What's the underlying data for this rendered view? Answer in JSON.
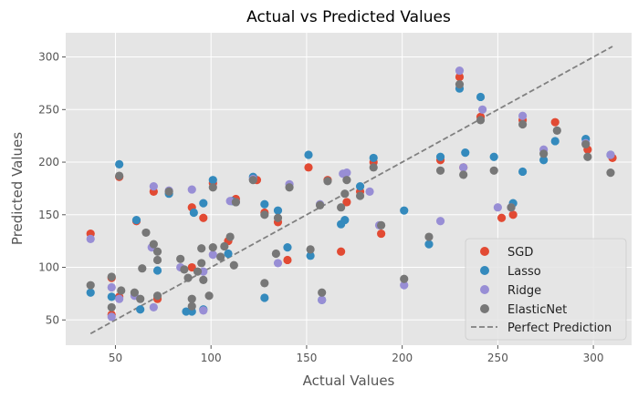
{
  "chart_data": {
    "type": "scatter",
    "title": "Actual vs Predicted Values",
    "xlabel": "Actual Values",
    "ylabel": "Predicted Values",
    "xlim": [
      24,
      320
    ],
    "ylim": [
      26,
      323
    ],
    "xticks": [
      50,
      100,
      150,
      200,
      250,
      300
    ],
    "yticks": [
      50,
      100,
      150,
      200,
      250,
      300
    ],
    "grid": true,
    "legend_position": "bottom-right",
    "colors": {
      "SGD": "#E24A33",
      "Lasso": "#348ABD",
      "Ridge": "#988ED5",
      "ElasticNet": "#777777",
      "Perfect Prediction": "#808080"
    },
    "series": [
      {
        "name": "SGD",
        "points": [
          [
            37,
            132
          ],
          [
            48,
            90
          ],
          [
            52,
            186
          ],
          [
            52,
            72
          ],
          [
            61,
            144
          ],
          [
            72,
            70
          ],
          [
            90,
            157
          ],
          [
            96,
            147
          ],
          [
            101,
            180
          ],
          [
            109,
            125
          ],
          [
            113,
            165
          ],
          [
            128,
            152
          ],
          [
            135,
            143
          ],
          [
            140,
            107
          ],
          [
            151,
            195
          ],
          [
            161,
            183
          ],
          [
            168,
            115
          ],
          [
            171,
            162
          ],
          [
            178,
            172
          ],
          [
            185,
            200
          ],
          [
            189,
            132
          ],
          [
            220,
            202
          ],
          [
            230,
            281
          ],
          [
            232,
            195
          ],
          [
            241,
            243
          ],
          [
            252,
            147
          ],
          [
            258,
            150
          ],
          [
            263,
            240
          ],
          [
            280,
            238
          ],
          [
            297,
            212
          ],
          [
            310,
            204
          ],
          [
            90,
            100
          ],
          [
            48,
            55
          ],
          [
            70,
            172
          ],
          [
            124,
            183
          ]
        ]
      },
      {
        "name": "Lasso",
        "points": [
          [
            37,
            76
          ],
          [
            48,
            72
          ],
          [
            52,
            198
          ],
          [
            61,
            145
          ],
          [
            63,
            60
          ],
          [
            72,
            97
          ],
          [
            78,
            170
          ],
          [
            90,
            58
          ],
          [
            91,
            152
          ],
          [
            96,
            161
          ],
          [
            101,
            183
          ],
          [
            109,
            113
          ],
          [
            111,
            163
          ],
          [
            122,
            186
          ],
          [
            128,
            71
          ],
          [
            128,
            160
          ],
          [
            135,
            154
          ],
          [
            140,
            119
          ],
          [
            151,
            207
          ],
          [
            152,
            111
          ],
          [
            158,
            69
          ],
          [
            168,
            141
          ],
          [
            170,
            145
          ],
          [
            178,
            177
          ],
          [
            185,
            204
          ],
          [
            201,
            154
          ],
          [
            214,
            122
          ],
          [
            220,
            205
          ],
          [
            230,
            270
          ],
          [
            233,
            209
          ],
          [
            241,
            262
          ],
          [
            248,
            205
          ],
          [
            258,
            161
          ],
          [
            263,
            191
          ],
          [
            274,
            202
          ],
          [
            280,
            220
          ],
          [
            296,
            222
          ],
          [
            309,
            207
          ],
          [
            87,
            58
          ],
          [
            96,
            60
          ]
        ]
      },
      {
        "name": "Ridge",
        "points": [
          [
            37,
            127
          ],
          [
            48,
            81
          ],
          [
            52,
            70
          ],
          [
            60,
            73
          ],
          [
            69,
            119
          ],
          [
            70,
            177
          ],
          [
            78,
            173
          ],
          [
            84,
            100
          ],
          [
            90,
            174
          ],
          [
            96,
            96
          ],
          [
            101,
            112
          ],
          [
            110,
            163
          ],
          [
            113,
            162
          ],
          [
            122,
            184
          ],
          [
            135,
            104
          ],
          [
            141,
            179
          ],
          [
            157,
            160
          ],
          [
            158,
            69
          ],
          [
            169,
            189
          ],
          [
            171,
            190
          ],
          [
            183,
            172
          ],
          [
            188,
            140
          ],
          [
            201,
            83
          ],
          [
            220,
            144
          ],
          [
            230,
            287
          ],
          [
            232,
            195
          ],
          [
            242,
            250
          ],
          [
            250,
            157
          ],
          [
            257,
            157
          ],
          [
            263,
            244
          ],
          [
            274,
            212
          ],
          [
            296,
            218
          ],
          [
            309,
            207
          ],
          [
            48,
            53
          ],
          [
            96,
            59
          ],
          [
            70,
            62
          ]
        ]
      },
      {
        "name": "ElasticNet",
        "points": [
          [
            37,
            83
          ],
          [
            48,
            91
          ],
          [
            48,
            62
          ],
          [
            52,
            187
          ],
          [
            53,
            78
          ],
          [
            60,
            76
          ],
          [
            63,
            70
          ],
          [
            64,
            99
          ],
          [
            66,
            133
          ],
          [
            70,
            122
          ],
          [
            72,
            107
          ],
          [
            72,
            115
          ],
          [
            72,
            73
          ],
          [
            78,
            172
          ],
          [
            84,
            108
          ],
          [
            86,
            98
          ],
          [
            88,
            90
          ],
          [
            90,
            70
          ],
          [
            90,
            63
          ],
          [
            93,
            96
          ],
          [
            95,
            104
          ],
          [
            95,
            118
          ],
          [
            96,
            88
          ],
          [
            99,
            73
          ],
          [
            101,
            119
          ],
          [
            101,
            176
          ],
          [
            105,
            110
          ],
          [
            107,
            120
          ],
          [
            110,
            129
          ],
          [
            112,
            102
          ],
          [
            113,
            162
          ],
          [
            122,
            183
          ],
          [
            128,
            85
          ],
          [
            128,
            150
          ],
          [
            134,
            113
          ],
          [
            135,
            147
          ],
          [
            141,
            176
          ],
          [
            152,
            117
          ],
          [
            157,
            159
          ],
          [
            158,
            76
          ],
          [
            161,
            182
          ],
          [
            168,
            157
          ],
          [
            170,
            170
          ],
          [
            171,
            183
          ],
          [
            178,
            168
          ],
          [
            185,
            195
          ],
          [
            189,
            140
          ],
          [
            201,
            89
          ],
          [
            214,
            129
          ],
          [
            220,
            192
          ],
          [
            230,
            274
          ],
          [
            232,
            188
          ],
          [
            241,
            240
          ],
          [
            248,
            192
          ],
          [
            257,
            157
          ],
          [
            263,
            236
          ],
          [
            274,
            208
          ],
          [
            281,
            230
          ],
          [
            296,
            217
          ],
          [
            297,
            205
          ],
          [
            309,
            190
          ]
        ]
      }
    ],
    "reference_line": {
      "name": "Perfect Prediction",
      "x": [
        37,
        310
      ],
      "y": [
        37,
        310
      ],
      "style": "dashed"
    }
  }
}
